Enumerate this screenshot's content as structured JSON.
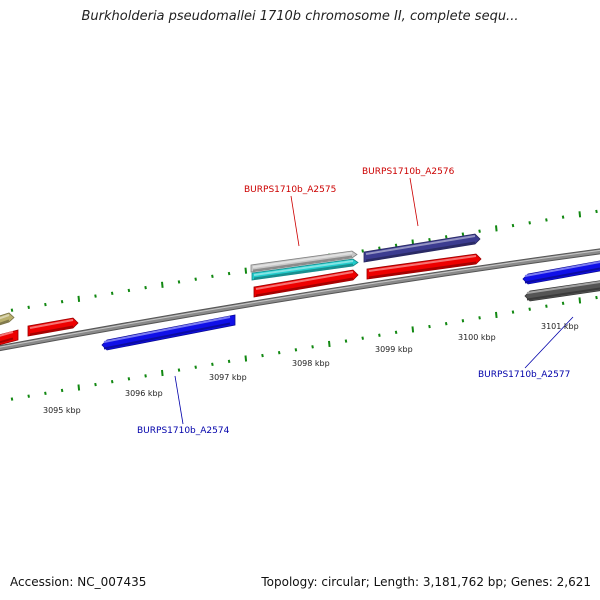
{
  "title": "Burkholderia pseudomallei 1710b chromosome II, complete sequ...",
  "footer": {
    "accession": "Accession: NC_007435",
    "summary": "Topology: circular; Length: 3,181,762 bp; Genes: 2,621"
  },
  "ruler": {
    "labels": [
      "3095 kbp",
      "3096 kbp",
      "3097 kbp",
      "3098 kbp",
      "3099 kbp",
      "3100 kbp",
      "3101 kbp"
    ]
  },
  "genes": [
    {
      "name": "gene-partial-left-olive",
      "color": "#b9b06e",
      "strand": "plus"
    },
    {
      "name": "gene-partial-left-red",
      "color": "#ee0000",
      "strand": "minus"
    },
    {
      "name": "gene-red-left",
      "color": "#ee0000",
      "strand": "plus"
    },
    {
      "name": "gene-BURPS1710b_A2574",
      "color": "#1010e8",
      "strand": "minus"
    },
    {
      "name": "gene-silver",
      "color": "#c8c8c8",
      "strand": "plus"
    },
    {
      "name": "gene-cyan",
      "color": "#22cccc",
      "strand": "plus"
    },
    {
      "name": "gene-BURPS1710b_A2575",
      "color": "#ee0000",
      "strand": "plus"
    },
    {
      "name": "gene-BURPS1710b_A2576",
      "color": "#3c3c90",
      "strand": "plus"
    },
    {
      "name": "gene-red-right",
      "color": "#ee0000",
      "strand": "plus"
    },
    {
      "name": "gene-blue-right",
      "color": "#1010e8",
      "strand": "minus"
    },
    {
      "name": "gene-BURPS1710b_A2577",
      "color": "#555555",
      "strand": "minus"
    }
  ],
  "gene_labels": [
    {
      "name": "label-A2575",
      "text": "BURPS1710b_A2575",
      "color": "#cc0000"
    },
    {
      "name": "label-A2576",
      "text": "BURPS1710b_A2576",
      "color": "#cc0000"
    },
    {
      "name": "label-A2574",
      "text": "BURPS1710b_A2574",
      "color": "#0000aa"
    },
    {
      "name": "label-A2577",
      "text": "BURPS1710b_A2577",
      "color": "#0000aa"
    }
  ],
  "tick_color": "#118811",
  "backbone_color": "#8a8a8a"
}
